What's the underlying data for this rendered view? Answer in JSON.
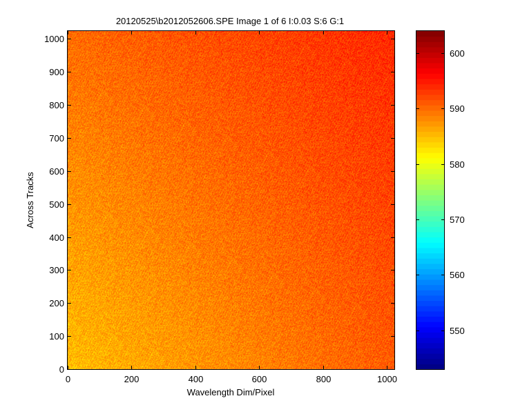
{
  "chart_data": {
    "type": "heatmap",
    "title": "20120525\\b2012052606.SPE  Image 1 of 6  I:0.03  S:6  G:1",
    "xlabel": "Wavelength Dim/Pixel",
    "ylabel": "Across Tracks",
    "xlim": [
      0,
      1024
    ],
    "ylim": [
      0,
      1024
    ],
    "x_ticks": [
      0,
      200,
      400,
      600,
      800,
      1000
    ],
    "y_ticks": [
      0,
      100,
      200,
      300,
      400,
      500,
      600,
      700,
      800,
      900,
      1000
    ],
    "colorbar": {
      "colormap": "jet",
      "clim": [
        543,
        604
      ],
      "ticks": [
        550,
        560,
        570,
        580,
        590,
        600
      ]
    },
    "value_summary": {
      "corner_values": {
        "bottom_left": 585,
        "bottom_right": 591,
        "top_left": 590,
        "top_right": 594
      },
      "typical_range": [
        584,
        596
      ]
    },
    "grid": false,
    "legend": "none"
  }
}
